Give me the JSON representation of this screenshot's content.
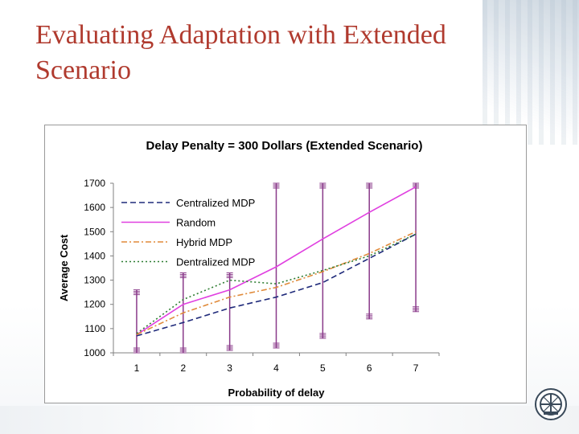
{
  "slide": {
    "title": "Evaluating Adaptation with Extended Scenario"
  },
  "colors": {
    "title": "#b03a2e",
    "centralized": "#1f2a7a",
    "random": "#e040e0",
    "hybrid": "#e08a3a",
    "dentralized": "#2e7d32",
    "errorbar": "#8a3a8a"
  },
  "chart_data": {
    "type": "line",
    "title": "Delay Penalty = 300 Dollars (Extended Scenario)",
    "xlabel": "Probability of delay",
    "ylabel": "Average Cost",
    "categories": [
      "1",
      "2",
      "3",
      "4",
      "5",
      "6",
      "7"
    ],
    "ylim": [
      1000,
      1700
    ],
    "yticks": [
      "1000",
      "1100",
      "1200",
      "1300",
      "1400",
      "1500",
      "1600",
      "1700"
    ],
    "grid": false,
    "legend_position": "top-left",
    "series": [
      {
        "name": "Centralized MDP",
        "style": "dashed",
        "values": [
          1070,
          1125,
          1185,
          1230,
          1290,
          1390,
          1490
        ]
      },
      {
        "name": "Random",
        "style": "solid",
        "values": [
          1075,
          1200,
          1260,
          1355,
          1470,
          1580,
          1685
        ]
      },
      {
        "name": "Hybrid MDP",
        "style": "dashdot",
        "values": [
          1075,
          1165,
          1230,
          1270,
          1335,
          1410,
          1500
        ]
      },
      {
        "name": "Dentralized MDP",
        "style": "dotted",
        "values": [
          1080,
          1220,
          1300,
          1285,
          1340,
          1400,
          1490
        ]
      }
    ],
    "error_bars": [
      {
        "x": "1",
        "low": 1000,
        "high": 1260
      },
      {
        "x": "2",
        "low": 1000,
        "high": 1330
      },
      {
        "x": "3",
        "low": 1010,
        "high": 1330
      },
      {
        "x": "4",
        "low": 1020,
        "high": 1700
      },
      {
        "x": "5",
        "low": 1060,
        "high": 1700
      },
      {
        "x": "6",
        "low": 1140,
        "high": 1700
      },
      {
        "x": "7",
        "low": 1170,
        "high": 1700
      }
    ]
  }
}
